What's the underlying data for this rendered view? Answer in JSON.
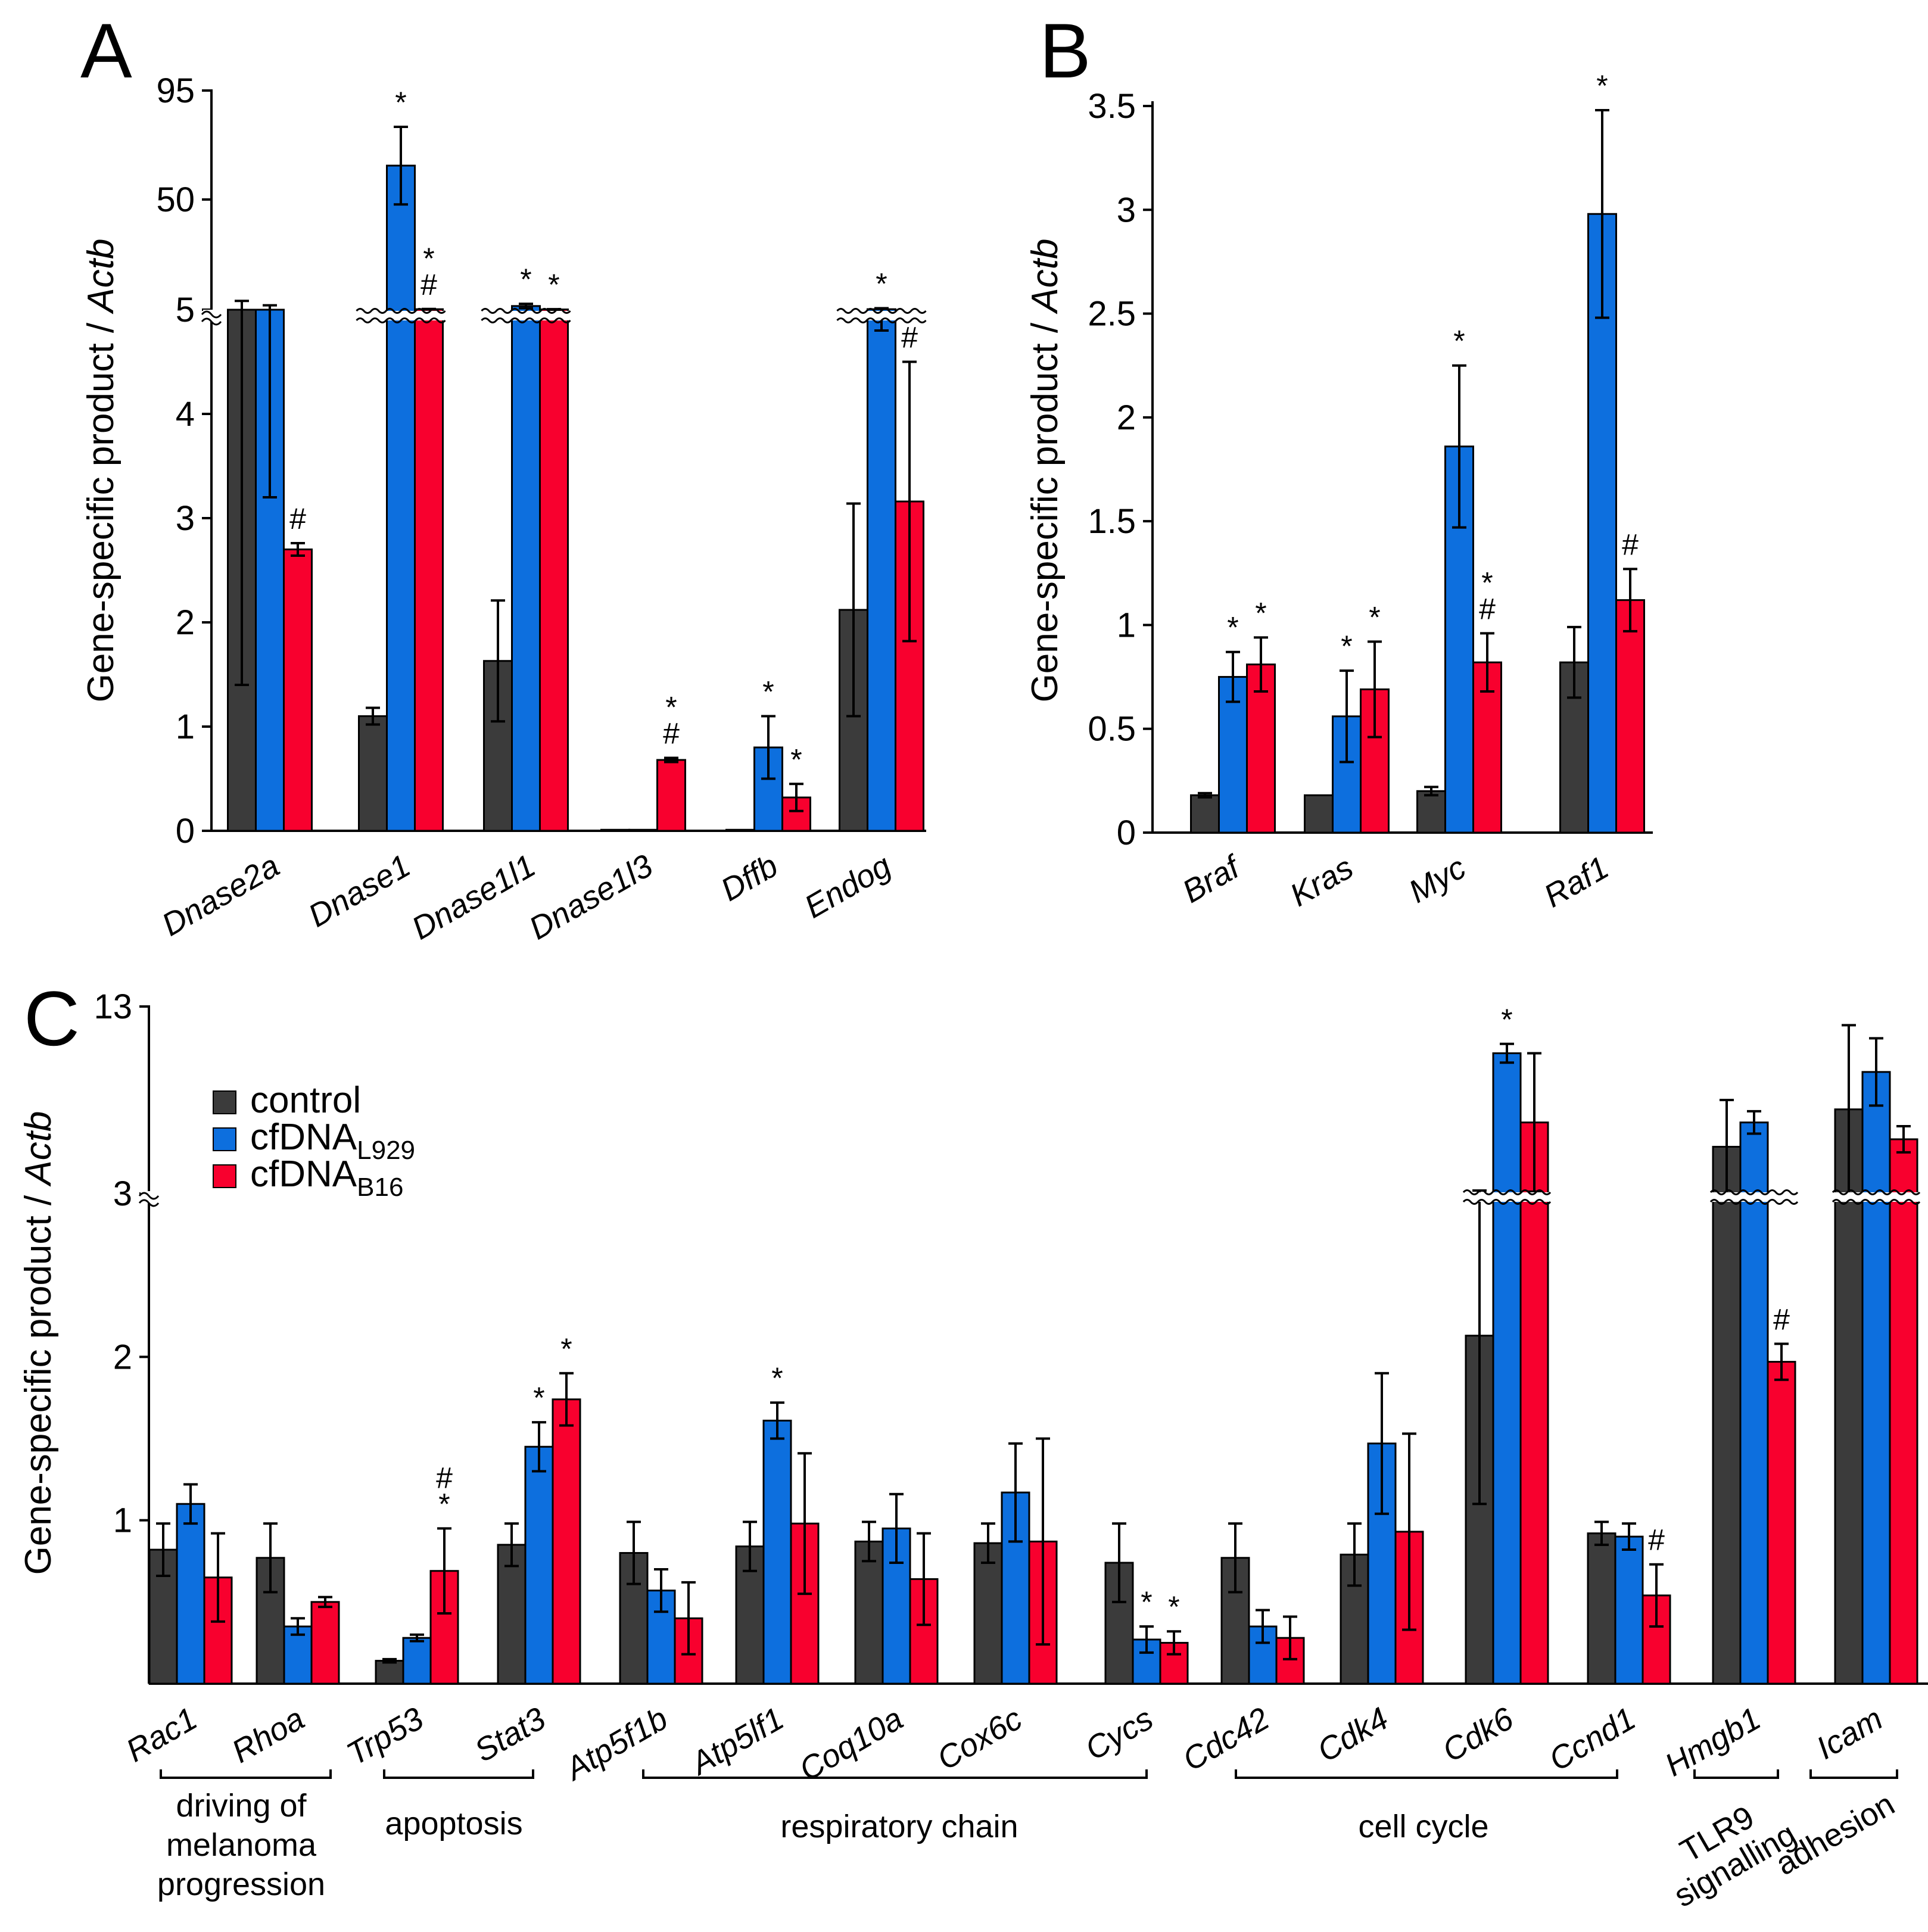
{
  "colors": {
    "control": "#3b3b3b",
    "cfDNA_L929": "#0d6fde",
    "cfDNA_B16": "#f8002e"
  },
  "legend": [
    {
      "key": "control",
      "label": "control",
      "sub": ""
    },
    {
      "key": "cfDNA_L929",
      "label": "cfDNA",
      "sub": "L929"
    },
    {
      "key": "cfDNA_B16",
      "label": "cfDNA",
      "sub": "B16"
    }
  ],
  "chart_data": [
    {
      "panel": "A",
      "type": "bar",
      "ylabel": "Gene-specific product / Actb",
      "ylabel_main": "Gene-specific product / ",
      "ylabel_italic": "Actb",
      "ylim": [
        0,
        95
      ],
      "axis_break_at": 5,
      "yticks_lower": [
        "0",
        "1",
        "2",
        "3",
        "4",
        "5"
      ],
      "yticks_upper": [
        "50",
        "95"
      ],
      "categories": [
        "Dnase2a",
        "Dnase1",
        "Dnase1l1",
        "Dnase1l3",
        "Dffb",
        "Endog"
      ],
      "series": [
        {
          "name": "control",
          "values": [
            5,
            1.1,
            1.63,
            0.01,
            0.01,
            2.12
          ],
          "err": [
            3.6,
            0.08,
            0.58,
            0,
            0,
            1.02
          ],
          "marks": [
            "",
            "",
            "",
            "",
            "",
            ""
          ]
        },
        {
          "name": "cfDNA_L929",
          "values": [
            5,
            64,
            6.5,
            0.01,
            0.8,
            5.2
          ],
          "err": [
            1.8,
            16,
            0.9,
            0,
            0.3,
            0.4
          ],
          "marks": [
            "",
            "*",
            "*",
            "",
            "*",
            "*"
          ]
        },
        {
          "name": "cfDNA_B16",
          "values": [
            2.7,
            5.2,
            5.1,
            0.68,
            0.32,
            3.16
          ],
          "err": [
            0.06,
            0.1,
            0.1,
            0.02,
            0.13,
            1.34
          ],
          "marks": [
            "#",
            "*\n#",
            "*",
            "*\n#",
            "*",
            "#"
          ]
        }
      ]
    },
    {
      "panel": "B",
      "type": "bar",
      "ylabel": "Gene-specific product / Actb",
      "ylabel_main": "Gene-specific product / ",
      "ylabel_italic": "Actb",
      "ylim": [
        0,
        3.5
      ],
      "yticks": [
        "0",
        "0.5",
        "1",
        "1.5",
        "2",
        "2.5",
        "3",
        "3.5"
      ],
      "categories": [
        "Braf",
        "Kras",
        "Myc",
        "Raf1"
      ],
      "series": [
        {
          "name": "control",
          "values": [
            0.18,
            0.18,
            0.2,
            0.82
          ],
          "err": [
            0.01,
            0,
            0.02,
            0.17
          ],
          "marks": [
            "",
            "",
            "",
            ""
          ]
        },
        {
          "name": "cfDNA_L929",
          "values": [
            0.75,
            0.56,
            1.86,
            2.98
          ],
          "err": [
            0.12,
            0.22,
            0.39,
            0.5
          ],
          "marks": [
            "*",
            "*",
            "*",
            "*"
          ]
        },
        {
          "name": "cfDNA_B16",
          "values": [
            0.81,
            0.69,
            0.82,
            1.12
          ],
          "err": [
            0.13,
            0.23,
            0.14,
            0.15
          ],
          "marks": [
            "*",
            "*",
            "*\n#",
            "#"
          ]
        }
      ]
    },
    {
      "panel": "C",
      "type": "bar",
      "ylabel": "Gene-specific product / Actb",
      "ylabel_main": "Gene-specific product / ",
      "ylabel_italic": "Actb",
      "ylim": [
        0,
        13
      ],
      "axis_break_at": 3,
      "yticks_lower": [
        "1",
        "2",
        "3"
      ],
      "yticks_upper": [
        "13"
      ],
      "categories": [
        "Rac1",
        "Rhoa",
        "Trp53",
        "Stat3",
        "Atp5f1b",
        "Atp5lf1",
        "Coq10a",
        "Cox6c",
        "Cycs",
        "Cdc42",
        "Cdk4",
        "Cdk6",
        "Ccnd1",
        "Hmgb1",
        "Icam"
      ],
      "series": [
        {
          "name": "control",
          "values": [
            0.82,
            0.77,
            0.14,
            0.85,
            0.8,
            0.84,
            0.87,
            0.86,
            0.74,
            0.77,
            0.79,
            2.13,
            0.92,
            5.5,
            7.5
          ],
          "err": [
            0.16,
            0.21,
            0.01,
            0.13,
            0.19,
            0.15,
            0.12,
            0.12,
            0.24,
            0.21,
            0.19,
            1.03,
            0.07,
            2.5,
            4.5
          ],
          "marks": [
            "",
            "",
            "",
            "",
            "",
            "",
            "",
            "",
            "",
            "",
            "",
            "",
            "",
            "",
            ""
          ]
        },
        {
          "name": "cfDNA_L929",
          "values": [
            1.1,
            0.35,
            0.28,
            1.45,
            0.57,
            1.61,
            0.95,
            1.17,
            0.27,
            0.35,
            1.47,
            10.5,
            0.9,
            6.8,
            9.5
          ],
          "err": [
            0.12,
            0.05,
            0.02,
            0.15,
            0.13,
            0.11,
            0.21,
            0.3,
            0.08,
            0.1,
            0.43,
            0.5,
            0.08,
            0.6,
            1.8
          ],
          "marks": [
            "",
            "",
            "",
            "*",
            "",
            "*",
            "",
            "",
            "*",
            "",
            "",
            "*",
            "",
            "",
            ""
          ]
        },
        {
          "name": "cfDNA_B16",
          "values": [
            0.65,
            0.5,
            0.69,
            1.74,
            0.4,
            0.98,
            0.64,
            0.87,
            0.25,
            0.28,
            0.93,
            6.8,
            0.54,
            1.97,
            5.9
          ],
          "err": [
            0.27,
            0.03,
            0.26,
            0.16,
            0.22,
            0.43,
            0.28,
            0.63,
            0.07,
            0.13,
            0.6,
            3.7,
            0.19,
            0.11,
            0.7
          ],
          "marks": [
            "",
            "",
            "#\n*",
            "*",
            "",
            "",
            "",
            "",
            "*",
            "",
            "",
            "",
            "#",
            "#",
            ""
          ]
        }
      ],
      "groups": [
        {
          "label": "driving of melanoma progression",
          "lines": [
            "driving of",
            "melanoma",
            "progression"
          ]
        },
        {
          "label": "apoptosis",
          "lines": [
            "apoptosis"
          ]
        },
        {
          "label": "respiratory chain",
          "lines": [
            "respiratory chain"
          ]
        },
        {
          "label": "cell cycle",
          "lines": [
            "cell cycle"
          ]
        },
        {
          "label": "TLR9 signalling",
          "lines": [
            "TLR9",
            "signalling"
          ]
        },
        {
          "label": "adhesion",
          "lines": [
            "adhesion"
          ]
        }
      ]
    }
  ]
}
